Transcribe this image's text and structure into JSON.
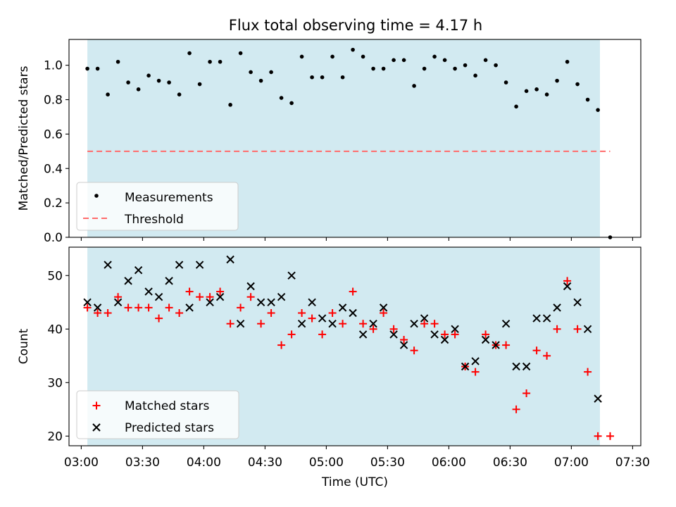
{
  "title": "Flux total observing time = 4.17 h",
  "colors": {
    "shade": "#add8e6",
    "measurement": "#000000",
    "threshold": "#ff6b6b",
    "matched": "#ff0000",
    "predicted": "#000000"
  },
  "chart_data": [
    {
      "type": "scatter",
      "ylabel": "Matched/Predicted stars",
      "xlim": [
        "02:54",
        "07:34"
      ],
      "ylim": [
        0,
        1.15
      ],
      "yticks": [
        "0.0",
        "0.2",
        "0.4",
        "0.6",
        "0.8",
        "1.0"
      ],
      "xticks": [
        "03:00",
        "03:30",
        "04:00",
        "04:30",
        "05:00",
        "05:30",
        "06:00",
        "06:30",
        "07:00",
        "07:30"
      ],
      "shaded_span": [
        "03:03",
        "07:14"
      ],
      "threshold": {
        "name": "Threshold",
        "value": 0.5,
        "x": [
          "03:03",
          "07:19"
        ]
      },
      "legend": {
        "placement": "lower-left",
        "entries": [
          "Measurements",
          "Threshold"
        ]
      },
      "series": [
        {
          "name": "Measurements",
          "x": [
            "03:03",
            "03:08",
            "03:13",
            "03:18",
            "03:23",
            "03:28",
            "03:33",
            "03:38",
            "03:43",
            "03:48",
            "03:53",
            "03:58",
            "04:03",
            "04:08",
            "04:13",
            "04:18",
            "04:23",
            "04:28",
            "04:33",
            "04:38",
            "04:43",
            "04:48",
            "04:53",
            "04:58",
            "05:03",
            "05:08",
            "05:13",
            "05:18",
            "05:23",
            "05:28",
            "05:33",
            "05:38",
            "05:43",
            "05:48",
            "05:53",
            "05:58",
            "06:03",
            "06:08",
            "06:13",
            "06:18",
            "06:23",
            "06:28",
            "06:33",
            "06:38",
            "06:43",
            "06:48",
            "06:53",
            "06:58",
            "07:03",
            "07:08",
            "07:13",
            "07:19"
          ],
          "y": [
            0.98,
            0.98,
            0.83,
            1.02,
            0.9,
            0.86,
            0.94,
            0.91,
            0.9,
            0.83,
            1.07,
            0.89,
            1.02,
            1.02,
            0.77,
            1.07,
            0.96,
            0.91,
            0.96,
            0.81,
            0.78,
            1.05,
            0.93,
            0.93,
            1.05,
            0.93,
            1.09,
            1.05,
            0.98,
            0.98,
            1.03,
            1.03,
            0.88,
            0.98,
            1.05,
            1.03,
            0.98,
            1.0,
            0.94,
            1.03,
            1.0,
            0.9,
            0.76,
            0.85,
            0.86,
            0.83,
            0.91,
            1.02,
            0.89,
            0.8,
            0.74,
            0.0
          ]
        }
      ]
    },
    {
      "type": "scatter",
      "xlabel": "Time (UTC)",
      "ylabel": "Count",
      "xlim": [
        "02:54",
        "07:34"
      ],
      "ylim": [
        18.2,
        55.3
      ],
      "yticks": [
        "20",
        "30",
        "40",
        "50"
      ],
      "xticks": [
        "03:00",
        "03:30",
        "04:00",
        "04:30",
        "05:00",
        "05:30",
        "06:00",
        "06:30",
        "07:00",
        "07:30"
      ],
      "shaded_span": [
        "03:03",
        "07:14"
      ],
      "legend": {
        "placement": "lower-left",
        "entries": [
          "Matched stars",
          "Predicted stars"
        ]
      },
      "series": [
        {
          "name": "Matched stars",
          "x": [
            "03:03",
            "03:08",
            "03:13",
            "03:18",
            "03:23",
            "03:28",
            "03:33",
            "03:38",
            "03:43",
            "03:48",
            "03:53",
            "03:58",
            "04:03",
            "04:08",
            "04:13",
            "04:18",
            "04:23",
            "04:28",
            "04:33",
            "04:38",
            "04:43",
            "04:48",
            "04:53",
            "04:58",
            "05:03",
            "05:08",
            "05:13",
            "05:18",
            "05:23",
            "05:28",
            "05:33",
            "05:38",
            "05:43",
            "05:48",
            "05:53",
            "05:58",
            "06:03",
            "06:08",
            "06:13",
            "06:18",
            "06:23",
            "06:28",
            "06:33",
            "06:38",
            "06:43",
            "06:48",
            "06:53",
            "06:58",
            "07:03",
            "07:08",
            "07:13",
            "07:19"
          ],
          "y": [
            44,
            43,
            43,
            46,
            44,
            44,
            44,
            42,
            44,
            43,
            47,
            46,
            46,
            47,
            41,
            44,
            46,
            41,
            43,
            37,
            39,
            43,
            42,
            39,
            43,
            41,
            47,
            41,
            40,
            43,
            40,
            38,
            36,
            41,
            41,
            39,
            39,
            33,
            32,
            39,
            37,
            37,
            25,
            28,
            36,
            35,
            40,
            49,
            40,
            32,
            20,
            20
          ]
        },
        {
          "name": "Predicted stars",
          "x": [
            "03:03",
            "03:08",
            "03:13",
            "03:18",
            "03:23",
            "03:28",
            "03:33",
            "03:38",
            "03:43",
            "03:48",
            "03:53",
            "03:58",
            "04:03",
            "04:08",
            "04:13",
            "04:18",
            "04:23",
            "04:28",
            "04:33",
            "04:38",
            "04:43",
            "04:48",
            "04:53",
            "04:58",
            "05:03",
            "05:08",
            "05:13",
            "05:18",
            "05:23",
            "05:28",
            "05:33",
            "05:38",
            "05:43",
            "05:48",
            "05:53",
            "05:58",
            "06:03",
            "06:08",
            "06:13",
            "06:18",
            "06:23",
            "06:28",
            "06:33",
            "06:38",
            "06:43",
            "06:48",
            "06:53",
            "06:58",
            "07:03",
            "07:08",
            "07:13"
          ],
          "y": [
            45,
            44,
            52,
            45,
            49,
            51,
            47,
            46,
            49,
            52,
            44,
            52,
            45,
            46,
            53,
            41,
            48,
            45,
            45,
            46,
            50,
            41,
            45,
            42,
            41,
            44,
            43,
            39,
            41,
            44,
            39,
            37,
            41,
            42,
            39,
            38,
            40,
            33,
            34,
            38,
            37,
            41,
            33,
            33,
            42,
            42,
            44,
            48,
            45,
            40,
            27
          ]
        }
      ]
    }
  ]
}
